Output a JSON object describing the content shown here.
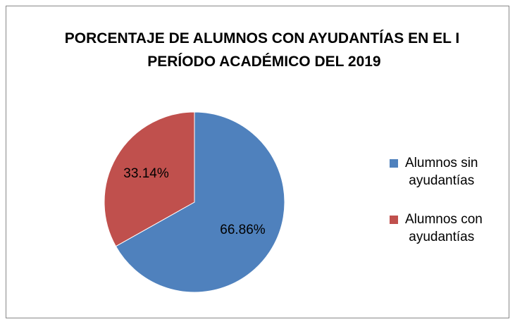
{
  "chart_data": {
    "type": "pie",
    "title": "PORCENTAJE DE ALUMNOS CON AYUDANTÍAS EN EL I PERÍODO ACADÉMICO DEL 2019",
    "categories": [
      "Alumnos sin ayudantías",
      "Alumnos con ayudantías"
    ],
    "values": [
      66.86,
      33.14
    ],
    "value_labels": [
      "66.86%",
      "33.14%"
    ],
    "colors": [
      "#4f81bd",
      "#c0504d"
    ],
    "legend": "right"
  }
}
